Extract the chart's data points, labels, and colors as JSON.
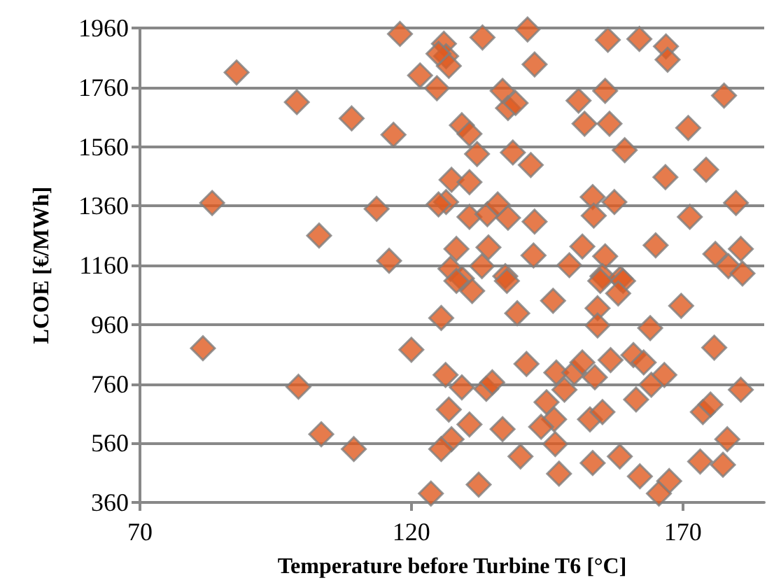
{
  "chart_data": {
    "type": "scatter",
    "xlabel": "Temperature before Turbine T6 [°C]",
    "ylabel": "LCOE [€/MWh]",
    "xlim": [
      70,
      185
    ],
    "xticks": [
      70,
      120,
      170
    ],
    "ylim": [
      360,
      1960
    ],
    "yticks": [
      360,
      560,
      760,
      960,
      1160,
      1360,
      1560,
      1760,
      1960
    ],
    "grid": "y",
    "marker": "diamond",
    "series": [
      {
        "color": "#e05a1f",
        "x": [
          117.9,
          87.8,
          98.9,
          109,
          116.7,
          121.6,
          83.3,
          113.6,
          103,
          115.9,
          81.6,
          120,
          99.2,
          103.4,
          109.4,
          123.6,
          133.1,
          141.4,
          126,
          126.4,
          125,
          126.9,
          142.7,
          156.2,
          162,
          166.9,
          167.2,
          124.7,
          136.8,
          137.8,
          139.2,
          150.8,
          155.7,
          151.9,
          156.5,
          177.6,
          171,
          129.3,
          130.7,
          132.1,
          138.7,
          142,
          159.3,
          166.8,
          174.3,
          127.4,
          130.7,
          126.4,
          125,
          130.7,
          134,
          135.9,
          137.8,
          142.7,
          153.4,
          153.6,
          157.4,
          171.3,
          179.8,
          165,
          128.3,
          134.2,
          142.5,
          151.5,
          155.7,
          149.1,
          127.2,
          133,
          137.3,
          129.3,
          155.2,
          158.5,
          176,
          180.7,
          178.4,
          181,
          128.3,
          131.2,
          137.6,
          146.1,
          154.3,
          154.8,
          159,
          158.1,
          154.3,
          169.7,
          125.5,
          139.5,
          164,
          175.8,
          141.2,
          126.3,
          129.3,
          133.8,
          134.9,
          146.7,
          150,
          151.5,
          153.8,
          156.7,
          160.9,
          162.8,
          164.2,
          166.6,
          161.4,
          144.9,
          148.2,
          180.7,
          126.9,
          173.7,
          175.1,
          146.3,
          152.9,
          155.2,
          130.7,
          136.8,
          143.9,
          127.4,
          125.5,
          146.5,
          178.2,
          140.1,
          153.4,
          158.4,
          173.2,
          177.4,
          147.2,
          162.1,
          167.5,
          165.6,
          132.4
        ],
        "values": [
          1940,
          1810,
          1710,
          1655,
          1600,
          1800,
          1370,
          1350,
          1260,
          1175,
          880,
          875,
          750,
          590,
          540,
          390,
          1928,
          1955,
          1907,
          1865,
          1873,
          1832,
          1837,
          1920,
          1923,
          1898,
          1853,
          1757,
          1748,
          1690,
          1707,
          1715,
          1748,
          1637,
          1637,
          1732,
          1623,
          1632,
          1603,
          1535,
          1540,
          1498,
          1548,
          1457,
          1482,
          1448,
          1440,
          1373,
          1365,
          1323,
          1332,
          1365,
          1320,
          1307,
          1390,
          1327,
          1373,
          1323,
          1370,
          1227,
          1215,
          1220,
          1193,
          1223,
          1190,
          1160,
          1148,
          1157,
          1123,
          1115,
          1123,
          1115,
          1198,
          1215,
          1157,
          1132,
          1107,
          1073,
          1107,
          1040,
          1015,
          1107,
          1107,
          1065,
          957,
          1023,
          982,
          998,
          948,
          882,
          827,
          790,
          748,
          743,
          765,
          798,
          798,
          832,
          782,
          840,
          857,
          832,
          757,
          790,
          707,
          698,
          740,
          740,
          673,
          665,
          690,
          640,
          640,
          665,
          623,
          607,
          615,
          573,
          540,
          557,
          573,
          515,
          493,
          515,
          498,
          487,
          457,
          448,
          432,
          390,
          420
        ]
      }
    ]
  }
}
